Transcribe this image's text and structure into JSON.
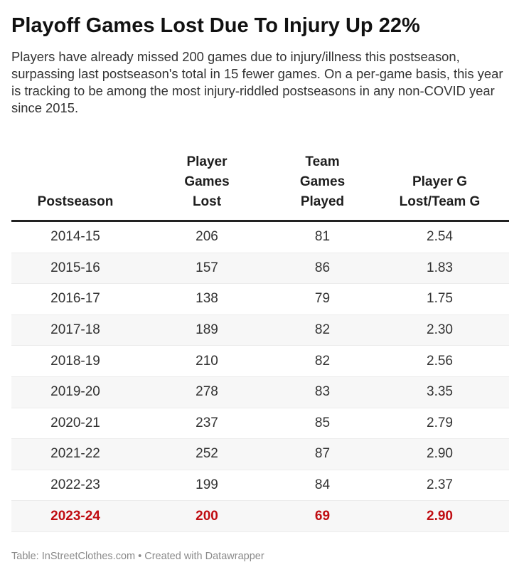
{
  "title": "Playoff Games Lost Due To Injury Up 22%",
  "subtitle": "Players have already missed 200 games due to injury/illness this postseason, surpassing last postseason's total in 15 fewer games. On a per-game basis, this year is tracking to be among the most injury-riddled postseasons in any non-COVID year since 2015.",
  "footer": "Table: InStreetClothes.com • Created with Datawrapper",
  "colors": {
    "highlight": "#c00d12",
    "header_rule": "#222222",
    "stripe": "#f7f7f7"
  },
  "chart_data": {
    "type": "table",
    "columns": [
      [
        "Postseason"
      ],
      [
        "Player",
        "Games",
        "Lost"
      ],
      [
        "Team",
        "Games",
        "Played"
      ],
      [
        "Player G",
        "Lost/Team G"
      ]
    ],
    "rows": [
      [
        "2014-15",
        "206",
        "81",
        "2.54"
      ],
      [
        "2015-16",
        "157",
        "86",
        "1.83"
      ],
      [
        "2016-17",
        "138",
        "79",
        "1.75"
      ],
      [
        "2017-18",
        "189",
        "82",
        "2.30"
      ],
      [
        "2018-19",
        "210",
        "82",
        "2.56"
      ],
      [
        "2019-20",
        "278",
        "83",
        "3.35"
      ],
      [
        "2020-21",
        "237",
        "85",
        "2.79"
      ],
      [
        "2021-22",
        "252",
        "87",
        "2.90"
      ],
      [
        "2022-23",
        "199",
        "84",
        "2.37"
      ],
      [
        "2023-24",
        "200",
        "69",
        "2.90"
      ]
    ],
    "highlight_row": 9
  }
}
